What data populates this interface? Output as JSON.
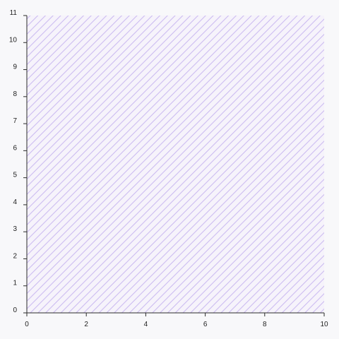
{
  "chart_data": {
    "type": "area",
    "title": "",
    "xlabel": "",
    "ylabel": "",
    "xlim": [
      0,
      10
    ],
    "ylim": [
      0,
      11
    ],
    "x_ticks": [
      "0",
      "2",
      "4",
      "6",
      "8",
      "10"
    ],
    "y_ticks": [
      "0",
      "1",
      "2",
      "3",
      "4",
      "5",
      "6",
      "7",
      "8",
      "9",
      "10",
      "11"
    ],
    "grid": false,
    "legend": "none",
    "series": [
      {
        "x": [
          0,
          10
        ],
        "y": [
          11,
          11
        ],
        "fill": "diagonal-hatch",
        "color": "#c9b8f0"
      }
    ]
  },
  "colors": {
    "background": "#f8f8fa",
    "plot_background": "#f6f3fb",
    "hatch": "#c9b8f0",
    "axis": "#2b2b2b",
    "text": "#1f1f1f"
  }
}
